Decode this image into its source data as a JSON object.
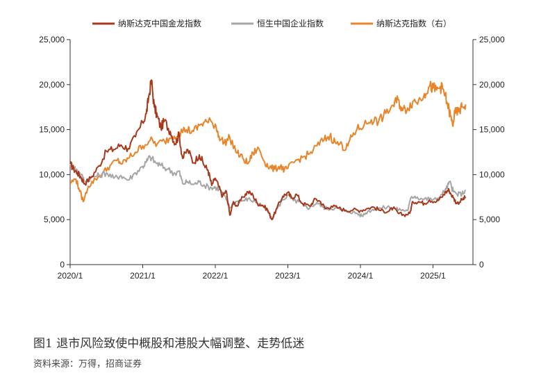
{
  "chart_data": {
    "type": "line",
    "title": "",
    "xlabel": "",
    "ylabel": "",
    "legend_position": "top",
    "grid": false,
    "x_ticks": [
      "2020/1",
      "2021/1",
      "2022/1",
      "2023/1",
      "2024/1",
      "2025/1"
    ],
    "y_left": {
      "range": [
        0,
        25000
      ],
      "ticks": [
        "0",
        "5,000",
        "10,000",
        "15,000",
        "20,000",
        "25,000"
      ]
    },
    "y_right": {
      "range": [
        0,
        25000
      ],
      "ticks": [
        "0",
        "5,000",
        "10,000",
        "15,000",
        "20,000",
        "25,000"
      ]
    },
    "x_range": [
      2020.0,
      2025.55
    ],
    "series": [
      {
        "name": "纳斯达克中国金龙指数",
        "axis": "left",
        "color": "#a8381b",
        "points": [
          [
            2020.0,
            11200
          ],
          [
            2020.05,
            10600
          ],
          [
            2020.1,
            10200
          ],
          [
            2020.15,
            9700
          ],
          [
            2020.2,
            9000
          ],
          [
            2020.3,
            9800
          ],
          [
            2020.4,
            11000
          ],
          [
            2020.5,
            12600
          ],
          [
            2020.6,
            12800
          ],
          [
            2020.7,
            13300
          ],
          [
            2020.8,
            12900
          ],
          [
            2020.9,
            14200
          ],
          [
            2021.0,
            15800
          ],
          [
            2021.05,
            16800
          ],
          [
            2021.08,
            18500
          ],
          [
            2021.12,
            20500
          ],
          [
            2021.16,
            17500
          ],
          [
            2021.2,
            16500
          ],
          [
            2021.25,
            15200
          ],
          [
            2021.3,
            16000
          ],
          [
            2021.38,
            14800
          ],
          [
            2021.45,
            13400
          ],
          [
            2021.5,
            14500
          ],
          [
            2021.55,
            11800
          ],
          [
            2021.62,
            12800
          ],
          [
            2021.7,
            11300
          ],
          [
            2021.78,
            12200
          ],
          [
            2021.85,
            11000
          ],
          [
            2021.9,
            10500
          ],
          [
            2021.95,
            8800
          ],
          [
            2022.0,
            9600
          ],
          [
            2022.05,
            8600
          ],
          [
            2022.1,
            7600
          ],
          [
            2022.15,
            8200
          ],
          [
            2022.2,
            5500
          ],
          [
            2022.25,
            7000
          ],
          [
            2022.3,
            6500
          ],
          [
            2022.38,
            7500
          ],
          [
            2022.45,
            8100
          ],
          [
            2022.52,
            7700
          ],
          [
            2022.58,
            6800
          ],
          [
            2022.65,
            6600
          ],
          [
            2022.72,
            6100
          ],
          [
            2022.78,
            5000
          ],
          [
            2022.85,
            6300
          ],
          [
            2022.93,
            7600
          ],
          [
            2023.0,
            8000
          ],
          [
            2023.05,
            7400
          ],
          [
            2023.12,
            7800
          ],
          [
            2023.2,
            6800
          ],
          [
            2023.3,
            6500
          ],
          [
            2023.38,
            7300
          ],
          [
            2023.45,
            7000
          ],
          [
            2023.52,
            6200
          ],
          [
            2023.6,
            6500
          ],
          [
            2023.7,
            6300
          ],
          [
            2023.8,
            6000
          ],
          [
            2023.9,
            6100
          ],
          [
            2024.0,
            6000
          ],
          [
            2024.08,
            6200
          ],
          [
            2024.18,
            6400
          ],
          [
            2024.28,
            6000
          ],
          [
            2024.38,
            5900
          ],
          [
            2024.45,
            6300
          ],
          [
            2024.52,
            5700
          ],
          [
            2024.6,
            5500
          ],
          [
            2024.68,
            5700
          ],
          [
            2024.72,
            7000
          ],
          [
            2024.8,
            7000
          ],
          [
            2024.88,
            6800
          ],
          [
            2024.95,
            7200
          ],
          [
            2025.05,
            7000
          ],
          [
            2025.12,
            7500
          ],
          [
            2025.18,
            8100
          ],
          [
            2025.22,
            8300
          ],
          [
            2025.28,
            7400
          ],
          [
            2025.33,
            6800
          ],
          [
            2025.4,
            7200
          ],
          [
            2025.45,
            7500
          ]
        ]
      },
      {
        "name": "恒生中国企业指数",
        "axis": "left",
        "color": "#a6a6a6",
        "points": [
          [
            2020.0,
            11300
          ],
          [
            2020.05,
            10800
          ],
          [
            2020.1,
            10400
          ],
          [
            2020.15,
            10000
          ],
          [
            2020.2,
            9300
          ],
          [
            2020.3,
            9700
          ],
          [
            2020.4,
            9900
          ],
          [
            2020.5,
            10200
          ],
          [
            2020.6,
            9600
          ],
          [
            2020.7,
            9900
          ],
          [
            2020.8,
            9400
          ],
          [
            2020.9,
            10200
          ],
          [
            2021.0,
            10900
          ],
          [
            2021.05,
            11400
          ],
          [
            2021.1,
            12000
          ],
          [
            2021.18,
            11300
          ],
          [
            2021.25,
            11000
          ],
          [
            2021.35,
            10600
          ],
          [
            2021.45,
            10100
          ],
          [
            2021.5,
            10400
          ],
          [
            2021.55,
            9000
          ],
          [
            2021.62,
            9200
          ],
          [
            2021.7,
            8900
          ],
          [
            2021.78,
            9200
          ],
          [
            2021.85,
            8800
          ],
          [
            2021.95,
            8500
          ],
          [
            2022.0,
            8600
          ],
          [
            2022.08,
            8200
          ],
          [
            2022.15,
            7200
          ],
          [
            2022.2,
            6300
          ],
          [
            2022.28,
            7000
          ],
          [
            2022.38,
            7100
          ],
          [
            2022.45,
            7300
          ],
          [
            2022.55,
            7000
          ],
          [
            2022.65,
            6600
          ],
          [
            2022.72,
            5900
          ],
          [
            2022.78,
            5000
          ],
          [
            2022.85,
            6200
          ],
          [
            2022.93,
            7200
          ],
          [
            2023.0,
            7700
          ],
          [
            2023.08,
            7100
          ],
          [
            2023.15,
            7000
          ],
          [
            2023.22,
            6500
          ],
          [
            2023.3,
            6300
          ],
          [
            2023.4,
            6900
          ],
          [
            2023.48,
            6400
          ],
          [
            2023.55,
            6200
          ],
          [
            2023.65,
            6300
          ],
          [
            2023.75,
            6000
          ],
          [
            2023.85,
            5900
          ],
          [
            2023.95,
            5700
          ],
          [
            2024.02,
            5400
          ],
          [
            2024.1,
            5900
          ],
          [
            2024.2,
            6200
          ],
          [
            2024.3,
            6300
          ],
          [
            2024.4,
            6400
          ],
          [
            2024.48,
            6200
          ],
          [
            2024.55,
            6100
          ],
          [
            2024.65,
            6000
          ],
          [
            2024.7,
            7500
          ],
          [
            2024.75,
            7600
          ],
          [
            2024.85,
            7300
          ],
          [
            2024.95,
            7300
          ],
          [
            2025.05,
            7200
          ],
          [
            2025.12,
            7800
          ],
          [
            2025.18,
            8400
          ],
          [
            2025.23,
            9200
          ],
          [
            2025.28,
            8100
          ],
          [
            2025.33,
            7800
          ],
          [
            2025.4,
            7900
          ],
          [
            2025.45,
            8200
          ]
        ]
      },
      {
        "name": "纳斯达克指数（右）",
        "axis": "right",
        "color": "#e8842a",
        "points": [
          [
            2020.0,
            9100
          ],
          [
            2020.08,
            9500
          ],
          [
            2020.12,
            8500
          ],
          [
            2020.18,
            7000
          ],
          [
            2020.25,
            8700
          ],
          [
            2020.35,
            9500
          ],
          [
            2020.45,
            10200
          ],
          [
            2020.55,
            11000
          ],
          [
            2020.65,
            11600
          ],
          [
            2020.72,
            11200
          ],
          [
            2020.8,
            11800
          ],
          [
            2020.9,
            12500
          ],
          [
            2021.0,
            13200
          ],
          [
            2021.1,
            13800
          ],
          [
            2021.2,
            13400
          ],
          [
            2021.3,
            13700
          ],
          [
            2021.4,
            14200
          ],
          [
            2021.5,
            14700
          ],
          [
            2021.6,
            15000
          ],
          [
            2021.7,
            14800
          ],
          [
            2021.8,
            15600
          ],
          [
            2021.88,
            15900
          ],
          [
            2022.0,
            15600
          ],
          [
            2022.05,
            14300
          ],
          [
            2022.12,
            13500
          ],
          [
            2022.2,
            14100
          ],
          [
            2022.3,
            12400
          ],
          [
            2022.38,
            11800
          ],
          [
            2022.45,
            11200
          ],
          [
            2022.52,
            12400
          ],
          [
            2022.6,
            12900
          ],
          [
            2022.68,
            11400
          ],
          [
            2022.75,
            10800
          ],
          [
            2022.82,
            10600
          ],
          [
            2022.9,
            11000
          ],
          [
            2022.95,
            10500
          ],
          [
            2023.0,
            10700
          ],
          [
            2023.1,
            11500
          ],
          [
            2023.2,
            11900
          ],
          [
            2023.3,
            12300
          ],
          [
            2023.4,
            13200
          ],
          [
            2023.5,
            13900
          ],
          [
            2023.58,
            14300
          ],
          [
            2023.65,
            13600
          ],
          [
            2023.75,
            13200
          ],
          [
            2023.8,
            12800
          ],
          [
            2023.88,
            14200
          ],
          [
            2023.95,
            15000
          ],
          [
            2024.05,
            15500
          ],
          [
            2024.15,
            16100
          ],
          [
            2024.25,
            15900
          ],
          [
            2024.35,
            16800
          ],
          [
            2024.45,
            17700
          ],
          [
            2024.52,
            18300
          ],
          [
            2024.58,
            17100
          ],
          [
            2024.65,
            17400
          ],
          [
            2024.72,
            18100
          ],
          [
            2024.8,
            18200
          ],
          [
            2024.88,
            19000
          ],
          [
            2024.95,
            19800
          ],
          [
            2025.0,
            19600
          ],
          [
            2025.05,
            19400
          ],
          [
            2025.1,
            19800
          ],
          [
            2025.15,
            19200
          ],
          [
            2025.2,
            17800
          ],
          [
            2025.24,
            16500
          ],
          [
            2025.27,
            15500
          ],
          [
            2025.3,
            16800
          ],
          [
            2025.35,
            17000
          ],
          [
            2025.4,
            17500
          ],
          [
            2025.45,
            17800
          ]
        ]
      }
    ]
  },
  "caption": "图1  退市风险致使中概股和港股大幅调整、走势低迷",
  "source": "资料来源：万得，招商证券"
}
